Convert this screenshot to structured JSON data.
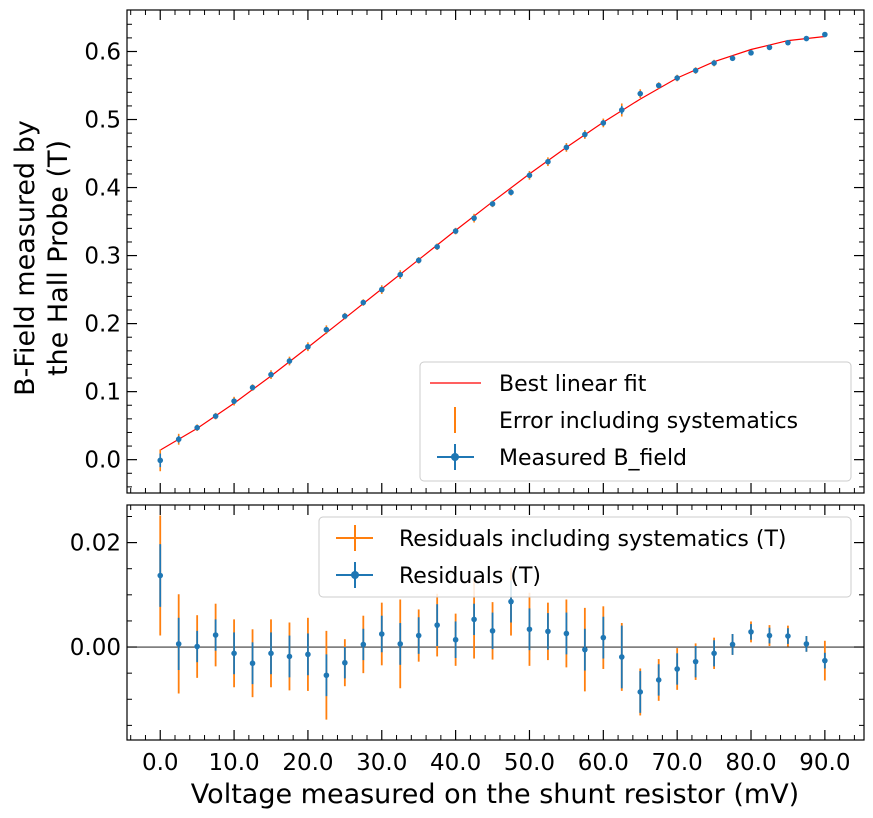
{
  "chart_data": [
    {
      "type": "scatter",
      "panel": "top",
      "ylabel": "B-Field measured by\nthe Hall Probe (T)",
      "ylabel_lines": [
        "B-Field measured by",
        "the Hall Probe (T)"
      ],
      "xlim": [
        -4.5,
        95.3
      ],
      "ylim": [
        -0.049,
        0.661
      ],
      "y_ticks": [
        0.0,
        0.1,
        0.2,
        0.3,
        0.4,
        0.5,
        0.6
      ],
      "y_tick_labels": [
        "0.0",
        "0.1",
        "0.2",
        "0.3",
        "0.4",
        "0.5",
        "0.6"
      ],
      "legend_position": "lower-right",
      "legend": [
        {
          "label": "Best linear fit",
          "kind": "line",
          "color": "#ff0000"
        },
        {
          "label": "Error including systematics",
          "kind": "vbar",
          "color": "#ff7f0e"
        },
        {
          "label": "Measured B_field",
          "kind": "errorbar",
          "color": "#1f77b4"
        }
      ],
      "x": [
        0.0,
        2.5,
        5.0,
        7.5,
        10.0,
        12.5,
        15.0,
        17.5,
        20.0,
        22.5,
        25.0,
        27.5,
        30.0,
        32.5,
        35.0,
        37.5,
        40.0,
        42.5,
        45.0,
        47.5,
        50.0,
        52.5,
        55.0,
        57.5,
        60.0,
        62.5,
        65.0,
        67.5,
        70.0,
        72.5,
        75.0,
        77.5,
        80.0,
        82.5,
        85.0,
        87.5,
        90.0
      ],
      "y": [
        -0.001,
        0.03,
        0.047,
        0.064,
        0.086,
        0.106,
        0.125,
        0.145,
        0.166,
        0.191,
        0.211,
        0.231,
        0.25,
        0.272,
        0.293,
        0.313,
        0.336,
        0.355,
        0.376,
        0.393,
        0.418,
        0.438,
        0.459,
        0.478,
        0.495,
        0.514,
        0.538,
        0.55,
        0.561,
        0.572,
        0.583,
        0.59,
        0.598,
        0.606,
        0.613,
        0.619,
        0.625
      ],
      "yerr": [
        0.01,
        0.005,
        0.003,
        0.003,
        0.004,
        0.003,
        0.004,
        0.004,
        0.004,
        0.004,
        0.003,
        0.003,
        0.004,
        0.004,
        0.003,
        0.003,
        0.003,
        0.004,
        0.003,
        0.003,
        0.004,
        0.004,
        0.004,
        0.004,
        0.004,
        0.006,
        0.004,
        0.003,
        0.003,
        0.003,
        0.003,
        0.002,
        0.002,
        0.002,
        0.002,
        0.002,
        0.002
      ],
      "fit_curve_x": [
        0,
        5,
        10,
        15,
        20,
        25,
        30,
        35,
        40,
        45,
        50,
        55,
        60,
        65,
        70,
        75,
        80,
        85,
        90
      ],
      "fit_curve_y": [
        0.014,
        0.046,
        0.083,
        0.123,
        0.165,
        0.208,
        0.251,
        0.294,
        0.337,
        0.379,
        0.42,
        0.459,
        0.496,
        0.53,
        0.561,
        0.585,
        0.603,
        0.616,
        0.622
      ],
      "colors": {
        "points": "#1f77b4",
        "syst": "#ff7f0e",
        "fit": "#ff0000"
      }
    },
    {
      "type": "scatter",
      "panel": "bottom",
      "xlabel": "Voltage measured on the shunt resistor (mV)",
      "xlim": [
        -4.5,
        95.3
      ],
      "ylim": [
        -0.0178,
        0.0272
      ],
      "y_ticks": [
        0.0,
        0.02
      ],
      "y_tick_labels": [
        "0.00",
        "0.02"
      ],
      "x_ticks": [
        0,
        10,
        20,
        30,
        40,
        50,
        60,
        70,
        80,
        90
      ],
      "x_tick_labels": [
        "0.0",
        "10.0",
        "20.0",
        "30.0",
        "40.0",
        "50.0",
        "60.0",
        "70.0",
        "80.0",
        "90.0"
      ],
      "legend_position": "upper-right",
      "legend": [
        {
          "label": "Residuals including systematics (T)",
          "kind": "errorbar-cross",
          "color": "#ff7f0e"
        },
        {
          "label": "Residuals (T)",
          "kind": "errorbar-cross",
          "color": "#1f77b4"
        }
      ],
      "x": [
        0.0,
        2.5,
        5.0,
        7.5,
        10.0,
        12.5,
        15.0,
        17.5,
        20.0,
        22.5,
        25.0,
        27.5,
        30.0,
        32.5,
        35.0,
        37.5,
        40.0,
        42.5,
        45.0,
        47.5,
        50.0,
        52.5,
        55.0,
        57.5,
        60.0,
        62.5,
        65.0,
        67.5,
        70.0,
        72.5,
        75.0,
        77.5,
        80.0,
        82.5,
        85.0,
        87.5,
        90.0
      ],
      "y": [
        0.0137,
        0.0006,
        0.0001,
        0.0023,
        -0.0012,
        -0.0031,
        -0.0012,
        -0.0018,
        -0.0014,
        -0.0054,
        -0.003,
        0.0005,
        0.0025,
        0.0006,
        0.0022,
        0.0042,
        0.0014,
        0.0053,
        0.0031,
        0.0087,
        0.0034,
        0.003,
        0.0026,
        -0.0005,
        0.0018,
        -0.0019,
        -0.0086,
        -0.0063,
        -0.0042,
        -0.0028,
        -0.0012,
        0.0005,
        0.0029,
        0.0022,
        0.0021,
        0.0006,
        -0.0026
      ],
      "yerr": [
        0.006,
        0.005,
        0.003,
        0.003,
        0.004,
        0.004,
        0.004,
        0.004,
        0.004,
        0.004,
        0.003,
        0.003,
        0.0035,
        0.004,
        0.0035,
        0.004,
        0.0035,
        0.003,
        0.0035,
        0.004,
        0.004,
        0.0035,
        0.004,
        0.004,
        0.004,
        0.006,
        0.004,
        0.003,
        0.003,
        0.003,
        0.0025,
        0.002,
        0.0015,
        0.0015,
        0.0015,
        0.0015,
        0.0015
      ],
      "yerr_syst": [
        0.0115,
        0.0095,
        0.006,
        0.006,
        0.0065,
        0.0065,
        0.0065,
        0.0065,
        0.007,
        0.0085,
        0.0045,
        0.0055,
        0.006,
        0.0085,
        0.005,
        0.006,
        0.005,
        0.0075,
        0.0055,
        0.0065,
        0.007,
        0.0055,
        0.0065,
        0.008,
        0.006,
        0.0065,
        0.0045,
        0.004,
        0.004,
        0.0035,
        0.003,
        0.002,
        0.002,
        0.002,
        0.002,
        0.0015,
        0.0038
      ],
      "colors": {
        "points": "#1f77b4",
        "syst": "#ff7f0e",
        "zero_line": "#000000"
      }
    }
  ]
}
